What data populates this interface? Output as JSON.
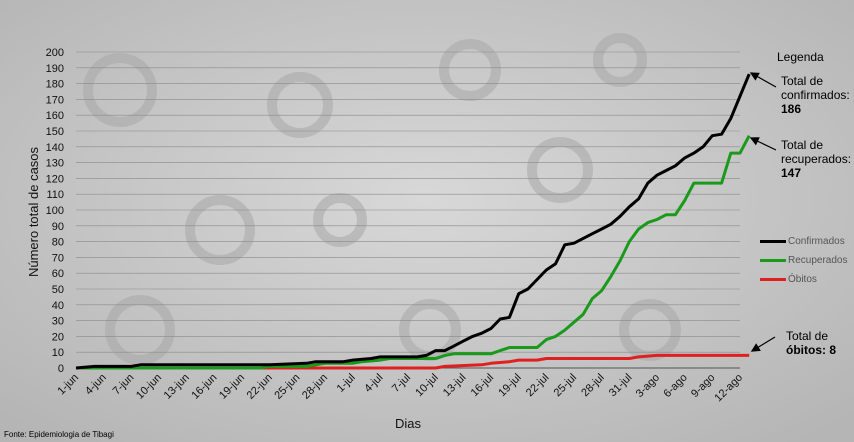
{
  "chart_data": {
    "type": "line",
    "title": "",
    "xlabel": "Dias",
    "ylabel": "Número total de casos",
    "ylim": [
      0,
      200
    ],
    "yticks": [
      0,
      10,
      20,
      30,
      40,
      50,
      60,
      70,
      80,
      90,
      100,
      110,
      120,
      130,
      140,
      150,
      160,
      170,
      180,
      190,
      200
    ],
    "xlim": [
      0,
      72
    ],
    "xticks": [
      {
        "x": 0,
        "label": "1-jun"
      },
      {
        "x": 3,
        "label": "4-jun"
      },
      {
        "x": 6,
        "label": "7-jun"
      },
      {
        "x": 9,
        "label": "10-jun"
      },
      {
        "x": 12,
        "label": "13-jun"
      },
      {
        "x": 15,
        "label": "16-jun"
      },
      {
        "x": 18,
        "label": "19-jun"
      },
      {
        "x": 21,
        "label": "22-jun"
      },
      {
        "x": 24,
        "label": "25-jun"
      },
      {
        "x": 27,
        "label": "28-jun"
      },
      {
        "x": 30,
        "label": "1-jul"
      },
      {
        "x": 33,
        "label": "4-jul"
      },
      {
        "x": 36,
        "label": "7-jul"
      },
      {
        "x": 39,
        "label": "10-jul"
      },
      {
        "x": 42,
        "label": "13-jul"
      },
      {
        "x": 45,
        "label": "16-jul"
      },
      {
        "x": 48,
        "label": "19-jul"
      },
      {
        "x": 51,
        "label": "22-jul"
      },
      {
        "x": 54,
        "label": "25-jul"
      },
      {
        "x": 57,
        "label": "28-jul"
      },
      {
        "x": 60,
        "label": "31-jul"
      },
      {
        "x": 63,
        "label": "3-ago"
      },
      {
        "x": 66,
        "label": "6-ago"
      },
      {
        "x": 69,
        "label": "9-ago"
      },
      {
        "x": 72,
        "label": "12-ago"
      }
    ],
    "grid": true,
    "legend": {
      "title": "Legenda",
      "position": "right"
    },
    "series": [
      {
        "name": "Confirmados",
        "color": "#000000",
        "points": [
          [
            0,
            0
          ],
          [
            2,
            1
          ],
          [
            6,
            1
          ],
          [
            7,
            2
          ],
          [
            21,
            2
          ],
          [
            25,
            3
          ],
          [
            26,
            4
          ],
          [
            29,
            4
          ],
          [
            30,
            5
          ],
          [
            32,
            6
          ],
          [
            33,
            7
          ],
          [
            37,
            7
          ],
          [
            38,
            8
          ],
          [
            39,
            11
          ],
          [
            40,
            11
          ],
          [
            41,
            14
          ],
          [
            42,
            17
          ],
          [
            43,
            20
          ],
          [
            44,
            22
          ],
          [
            45,
            25
          ],
          [
            46,
            31
          ],
          [
            47,
            32
          ],
          [
            48,
            47
          ],
          [
            49,
            50
          ],
          [
            50,
            56
          ],
          [
            51,
            62
          ],
          [
            52,
            66
          ],
          [
            53,
            78
          ],
          [
            54,
            79
          ],
          [
            55,
            82
          ],
          [
            56,
            85
          ],
          [
            57,
            88
          ],
          [
            58,
            91
          ],
          [
            59,
            96
          ],
          [
            60,
            102
          ],
          [
            61,
            107
          ],
          [
            62,
            117
          ],
          [
            63,
            122
          ],
          [
            64,
            125
          ],
          [
            65,
            128
          ],
          [
            66,
            133
          ],
          [
            67,
            136
          ],
          [
            68,
            140
          ],
          [
            69,
            147
          ],
          [
            70,
            148
          ],
          [
            71,
            158
          ],
          [
            72,
            172
          ],
          [
            73,
            186
          ]
        ]
      },
      {
        "name": "Recuperados",
        "color": "#1a9a1a",
        "points": [
          [
            0,
            0
          ],
          [
            20,
            0
          ],
          [
            21,
            1
          ],
          [
            25,
            1
          ],
          [
            26,
            2
          ],
          [
            27,
            3
          ],
          [
            30,
            3
          ],
          [
            31,
            4
          ],
          [
            33,
            5
          ],
          [
            34,
            6
          ],
          [
            39,
            6
          ],
          [
            40,
            8
          ],
          [
            41,
            9
          ],
          [
            45,
            9
          ],
          [
            46,
            11
          ],
          [
            47,
            13
          ],
          [
            50,
            13
          ],
          [
            51,
            18
          ],
          [
            52,
            20
          ],
          [
            53,
            24
          ],
          [
            54,
            29
          ],
          [
            55,
            34
          ],
          [
            56,
            44
          ],
          [
            57,
            49
          ],
          [
            58,
            58
          ],
          [
            59,
            68
          ],
          [
            60,
            80
          ],
          [
            61,
            88
          ],
          [
            62,
            92
          ],
          [
            63,
            94
          ],
          [
            64,
            97
          ],
          [
            65,
            97
          ],
          [
            66,
            106
          ],
          [
            67,
            117
          ],
          [
            70,
            117
          ],
          [
            71,
            136
          ],
          [
            72,
            136
          ],
          [
            73,
            147
          ]
        ]
      },
      {
        "name": "Óbitos",
        "color": "#e02020",
        "points": [
          [
            0,
            0
          ],
          [
            39,
            0
          ],
          [
            40,
            1
          ],
          [
            44,
            2
          ],
          [
            45,
            3
          ],
          [
            47,
            4
          ],
          [
            48,
            5
          ],
          [
            50,
            5
          ],
          [
            51,
            6
          ],
          [
            60,
            6
          ],
          [
            61,
            7
          ],
          [
            63,
            8
          ],
          [
            73,
            8
          ]
        ]
      }
    ],
    "annotations": [
      {
        "line1": "Total de",
        "line2": "confirmados:",
        "value": "186"
      },
      {
        "line1": "Total de",
        "line2": "recuperados:",
        "value": "147"
      },
      {
        "line1": "Total de",
        "line2": "óbitos:",
        "value": "8"
      }
    ]
  },
  "source": "Fonte: Epidemiologia de Tibagi"
}
